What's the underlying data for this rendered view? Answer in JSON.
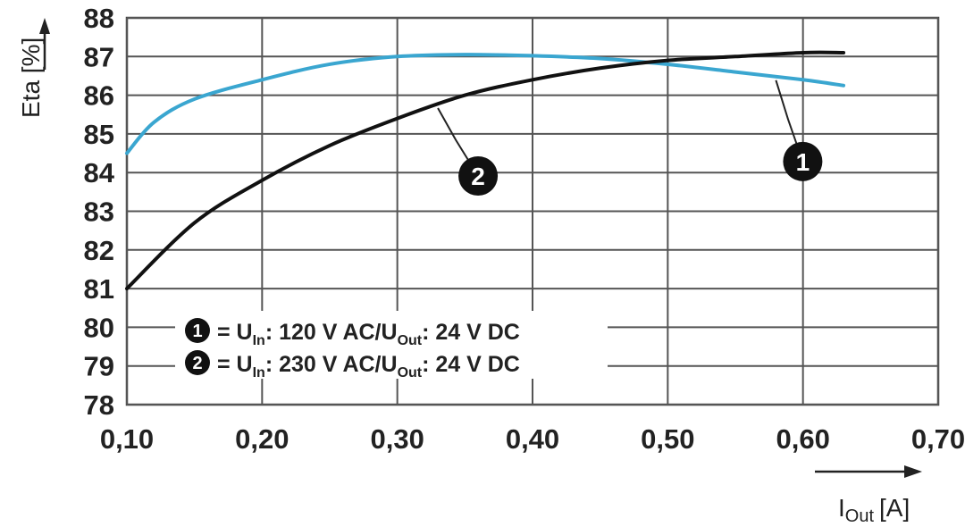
{
  "chart_data": {
    "type": "line",
    "xlabel": "I",
    "xlabel_sub": "Out",
    "xlabel_unit": "[A]",
    "ylabel": "Eta [%]",
    "xlim": [
      0.1,
      0.7
    ],
    "ylim": [
      78,
      88
    ],
    "x_ticks": [
      "0,10",
      "0,20",
      "0,30",
      "0,40",
      "0,50",
      "0,60",
      "0,70"
    ],
    "y_ticks": [
      "78",
      "79",
      "80",
      "81",
      "82",
      "83",
      "84",
      "85",
      "86",
      "87",
      "88"
    ],
    "grid": true,
    "series": [
      {
        "name": "1",
        "color": "#3aa6d0",
        "x": [
          0.1,
          0.12,
          0.15,
          0.2,
          0.25,
          0.3,
          0.35,
          0.4,
          0.45,
          0.5,
          0.55,
          0.6,
          0.63
        ],
        "y": [
          84.5,
          85.3,
          85.9,
          86.4,
          86.8,
          87.0,
          87.05,
          87.02,
          86.95,
          86.8,
          86.6,
          86.4,
          86.25
        ]
      },
      {
        "name": "2",
        "color": "#111111",
        "x": [
          0.1,
          0.15,
          0.2,
          0.25,
          0.3,
          0.35,
          0.4,
          0.45,
          0.5,
          0.55,
          0.6,
          0.63
        ],
        "y": [
          81.0,
          82.7,
          83.8,
          84.7,
          85.4,
          86.0,
          86.4,
          86.7,
          86.9,
          87.0,
          87.1,
          87.1
        ]
      }
    ],
    "legend": {
      "placement": "bottom-left",
      "entries": [
        {
          "badge": "1",
          "prefix": "= U",
          "sub1": "In",
          "mid": ": 120 V AC/U",
          "sub2": "Out",
          "suffix": ": 24 V DC"
        },
        {
          "badge": "2",
          "prefix": "= U",
          "sub1": "In",
          "mid": ": 230 V AC/U",
          "sub2": "Out",
          "suffix": ": 24 V DC"
        }
      ]
    },
    "callouts": [
      {
        "label": "1",
        "series": "1",
        "at_x": 0.58
      },
      {
        "label": "2",
        "series": "2",
        "at_x": 0.33
      }
    ]
  }
}
